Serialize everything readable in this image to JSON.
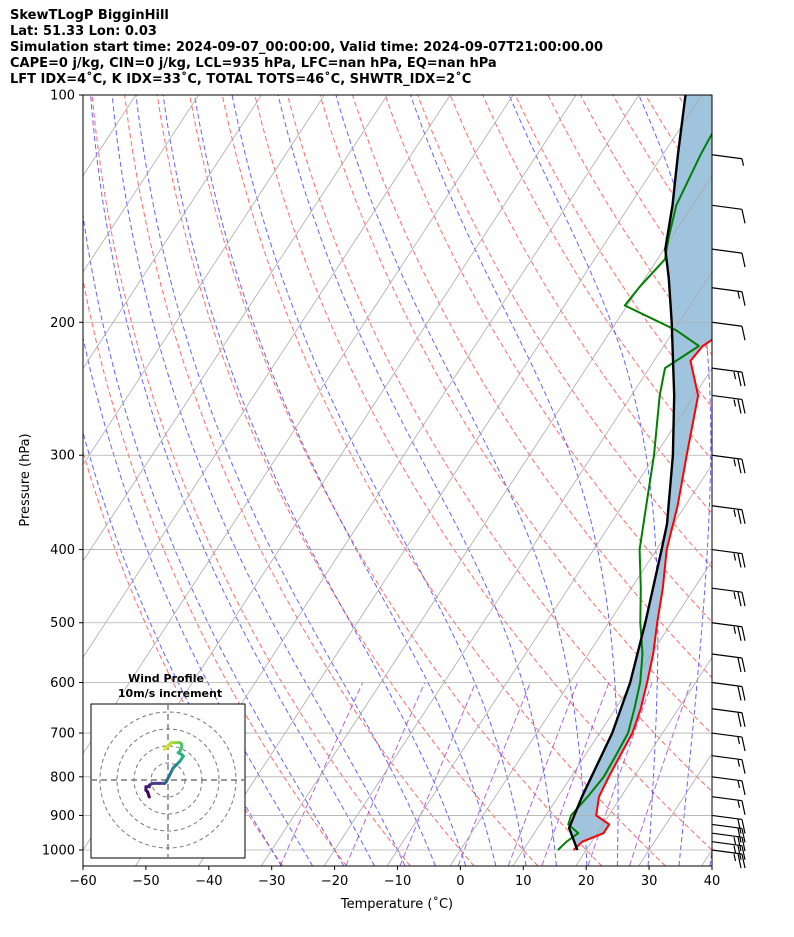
{
  "header": {
    "line1": "SkewTLogP BigginHill",
    "line2": "Lat: 51.33   Lon: 0.03",
    "line3": "Simulation start time: 2024-09-07_00:00:00, Valid time: 2024-09-07T21:00:00.00",
    "line4": "CAPE=0 j/kg, CIN=0 j/kg, LCL=935 hPa, LFC=nan hPa, EQ=nan hPa",
    "line5": "LFT IDX=4˚C, K IDX=33˚C, TOTAL TOTS=46˚C, SHWTR_IDX=2˚C"
  },
  "chart_data": [
    {
      "type": "line",
      "subtype": "skew-T log-P diagram",
      "xlabel": "Temperature (˚C)",
      "ylabel": "Pressure (hPa)",
      "xlim": [
        -60,
        40
      ],
      "ylim": [
        1050,
        100
      ],
      "y_scale": "log",
      "grid": true,
      "x_ticks": [
        "−60",
        "−50",
        "−40",
        "−30",
        "−20",
        "−10",
        "0",
        "10",
        "20",
        "30",
        "40"
      ],
      "y_ticks": [
        "100",
        "200",
        "300",
        "400",
        "500",
        "600",
        "700",
        "800",
        "900",
        "1000"
      ],
      "series": [
        {
          "role": "temperature",
          "color": "#ff0000",
          "points": [
            [
              18,
              1000
            ],
            [
              18.5,
              975
            ],
            [
              21,
              950
            ],
            [
              21,
              925
            ],
            [
              18,
              900
            ],
            [
              16.5,
              850
            ],
            [
              16,
              800
            ],
            [
              15.6,
              750
            ],
            [
              15.2,
              700
            ],
            [
              14,
              650
            ],
            [
              12.3,
              600
            ],
            [
              10.3,
              550
            ],
            [
              7.7,
              500
            ],
            [
              5,
              450
            ],
            [
              1.6,
              400
            ],
            [
              -1.2,
              350
            ],
            [
              -5,
              300
            ],
            [
              -9.4,
              250
            ],
            [
              -14.2,
              225
            ],
            [
              -13.8,
              215
            ],
            [
              -10.6,
              200
            ],
            [
              -10.4,
              180
            ],
            [
              -10.2,
              165
            ],
            [
              -7.6,
              150
            ],
            [
              -7.6,
              140
            ],
            [
              -4.2,
              120
            ],
            [
              -1.4,
              100
            ]
          ]
        },
        {
          "role": "dewpoint",
          "color": "#008000",
          "points": [
            [
              15.5,
              1000
            ],
            [
              16,
              975
            ],
            [
              17,
              950
            ],
            [
              14.5,
              925
            ],
            [
              14,
              900
            ],
            [
              14.7,
              850
            ],
            [
              15.2,
              800
            ],
            [
              14.9,
              750
            ],
            [
              14.5,
              700
            ],
            [
              13,
              650
            ],
            [
              11.2,
              600
            ],
            [
              8.6,
              550
            ],
            [
              5,
              500
            ],
            [
              1.5,
              450
            ],
            [
              -2.7,
              400
            ],
            [
              -6.2,
              350
            ],
            [
              -10.2,
              300
            ],
            [
              -15.5,
              250
            ],
            [
              -17.5,
              230
            ],
            [
              -14.4,
              215
            ],
            [
              -19.6,
              205
            ],
            [
              -30.4,
              190
            ],
            [
              -30,
              180
            ],
            [
              -28.8,
              165
            ],
            [
              -30.4,
              155
            ],
            [
              -32.6,
              140
            ],
            [
              -34,
              120
            ],
            [
              -35,
              100
            ]
          ]
        },
        {
          "role": "parcel",
          "color": "#000000",
          "points": [
            [
              18.6,
              1000
            ],
            [
              15,
              935
            ],
            [
              13.8,
              850
            ],
            [
              12,
              700
            ],
            [
              9.6,
              600
            ],
            [
              5.8,
              500
            ],
            [
              0.8,
              400
            ],
            [
              -1,
              370
            ],
            [
              -7.2,
              300
            ],
            [
              -13.2,
              250
            ],
            [
              -21.2,
              200
            ],
            [
              -26.2,
              175
            ],
            [
              -29.8,
              160
            ],
            [
              -33.2,
              140
            ],
            [
              -37.6,
              120
            ],
            [
              -42.6,
              100
            ]
          ]
        }
      ],
      "shaded_area_color": "#a0c4de",
      "reference_lines": {
        "dry_adiabats_color": "#ff5050",
        "moist_adiabats_color": "#3c3cff",
        "mixing_ratio_color": "#9932cc",
        "isotherms_color": "#aaaaaa"
      },
      "wind_barbs": [
        {
          "p": 1000,
          "speed_kt": 25
        },
        {
          "p": 975,
          "speed_kt": 25
        },
        {
          "p": 950,
          "speed_kt": 25
        },
        {
          "p": 925,
          "speed_kt": 20
        },
        {
          "p": 900,
          "speed_kt": 20
        },
        {
          "p": 850,
          "speed_kt": 15
        },
        {
          "p": 800,
          "speed_kt": 15
        },
        {
          "p": 750,
          "speed_kt": 15
        },
        {
          "p": 700,
          "speed_kt": 15
        },
        {
          "p": 650,
          "speed_kt": 20
        },
        {
          "p": 600,
          "speed_kt": 20
        },
        {
          "p": 550,
          "speed_kt": 20
        },
        {
          "p": 500,
          "speed_kt": 25
        },
        {
          "p": 450,
          "speed_kt": 25
        },
        {
          "p": 400,
          "speed_kt": 25
        },
        {
          "p": 350,
          "speed_kt": 25
        },
        {
          "p": 300,
          "speed_kt": 25
        },
        {
          "p": 250,
          "speed_kt": 25
        },
        {
          "p": 230,
          "speed_kt": 25
        },
        {
          "p": 200,
          "speed_kt": 10
        },
        {
          "p": 180,
          "speed_kt": 15
        },
        {
          "p": 160,
          "speed_kt": 10
        },
        {
          "p": 140,
          "speed_kt": 10
        },
        {
          "p": 120,
          "speed_kt": 5
        }
      ]
    },
    {
      "type": "line",
      "subtype": "hodograph",
      "title": "Wind Profile",
      "subtitle": "10m/s increment",
      "rings_ms": [
        10,
        20,
        30,
        40
      ],
      "points_uv": [
        [
          -2,
          18
        ],
        [
          0,
          20
        ],
        [
          1,
          21
        ],
        [
          2,
          22
        ],
        [
          4,
          22
        ],
        [
          6,
          22
        ],
        [
          7,
          22
        ],
        [
          8,
          21
        ],
        [
          8,
          19
        ],
        [
          7,
          17
        ],
        [
          6,
          16
        ],
        [
          8,
          15
        ],
        [
          9,
          14
        ],
        [
          7,
          11
        ],
        [
          5,
          9
        ],
        [
          3,
          7
        ],
        [
          2,
          5
        ],
        [
          1,
          3
        ],
        [
          0,
          1
        ],
        [
          -1,
          -1
        ],
        [
          -2,
          -2
        ],
        [
          -5,
          -2
        ],
        [
          -9,
          -2
        ],
        [
          -11,
          -3
        ],
        [
          -11,
          -4
        ],
        [
          -13,
          -4
        ],
        [
          -13,
          -6
        ],
        [
          -12,
          -7
        ],
        [
          -11,
          -10
        ]
      ]
    }
  ]
}
